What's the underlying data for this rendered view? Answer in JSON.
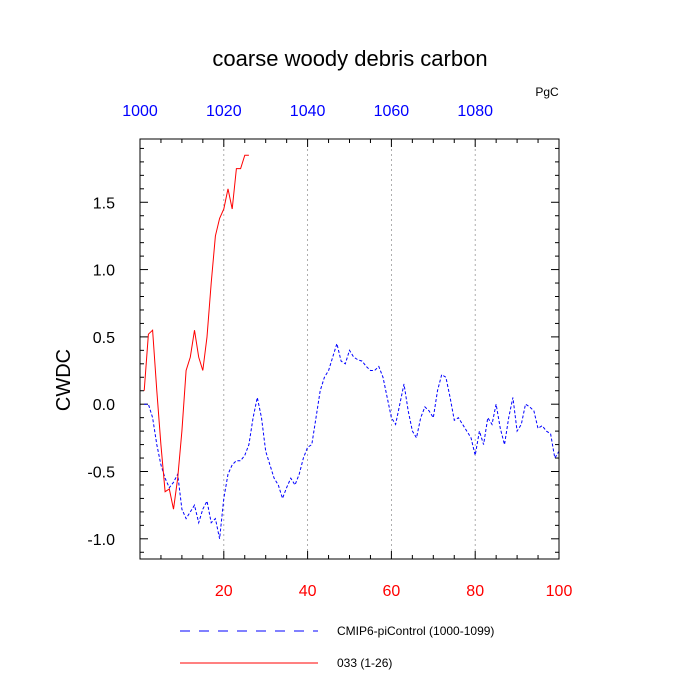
{
  "chart_data": {
    "type": "line",
    "title": "coarse woody debris carbon",
    "units": "PgC",
    "ylabel": "CWDC",
    "xlabel": "",
    "xlim": [
      0,
      100
    ],
    "ylim": [
      -1.15,
      1.97
    ],
    "grid_x": [
      20,
      40,
      60,
      80
    ],
    "bottom_ticks": {
      "values": [
        20,
        40,
        60,
        80,
        100
      ],
      "labels": [
        "20",
        "40",
        "60",
        "80",
        "100"
      ],
      "color": "#ff0000"
    },
    "top_ticks": {
      "values": [
        0,
        20,
        40,
        60,
        80
      ],
      "labels": [
        "1000",
        "1020",
        "1040",
        "1060",
        "1080"
      ],
      "color": "#0000ff"
    },
    "left_ticks": {
      "values": [
        -1.0,
        -0.5,
        0.0,
        0.5,
        1.0,
        1.5
      ],
      "labels": [
        "-1.0",
        "-0.5",
        "0.0",
        "0.5",
        "1.0",
        "1.5"
      ]
    },
    "legend_position": "bottom",
    "series": [
      {
        "name": "CMIP6-piControl (1000-1099)",
        "color": "#0000ff",
        "style": "dashed",
        "x": [
          1,
          2,
          3,
          4,
          5,
          6,
          7,
          8,
          9,
          10,
          11,
          12,
          13,
          14,
          15,
          16,
          17,
          18,
          19,
          20,
          21,
          22,
          23,
          24,
          25,
          26,
          27,
          28,
          29,
          30,
          31,
          32,
          33,
          34,
          35,
          36,
          37,
          38,
          39,
          40,
          41,
          42,
          43,
          44,
          45,
          46,
          47,
          48,
          49,
          50,
          51,
          52,
          53,
          54,
          55,
          56,
          57,
          58,
          59,
          60,
          61,
          62,
          63,
          64,
          65,
          66,
          67,
          68,
          69,
          70,
          71,
          72,
          73,
          74,
          75,
          76,
          77,
          78,
          79,
          80,
          81,
          82,
          83,
          84,
          85,
          86,
          87,
          88,
          89,
          90,
          91,
          92,
          93,
          94,
          95,
          96,
          97,
          98,
          99,
          100
        ],
        "values": [
          0.0,
          0.0,
          -0.1,
          -0.3,
          -0.45,
          -0.55,
          -0.62,
          -0.58,
          -0.52,
          -0.78,
          -0.85,
          -0.8,
          -0.75,
          -0.88,
          -0.78,
          -0.72,
          -0.88,
          -0.85,
          -1.0,
          -0.7,
          -0.52,
          -0.45,
          -0.42,
          -0.42,
          -0.38,
          -0.3,
          -0.1,
          0.05,
          -0.1,
          -0.35,
          -0.45,
          -0.55,
          -0.6,
          -0.7,
          -0.62,
          -0.55,
          -0.6,
          -0.52,
          -0.4,
          -0.32,
          -0.3,
          -0.1,
          0.1,
          0.2,
          0.25,
          0.35,
          0.45,
          0.32,
          0.3,
          0.4,
          0.35,
          0.33,
          0.32,
          0.28,
          0.25,
          0.25,
          0.28,
          0.2,
          0.05,
          -0.1,
          -0.15,
          0.0,
          0.15,
          -0.05,
          -0.2,
          -0.25,
          -0.1,
          -0.02,
          -0.05,
          -0.1,
          0.1,
          0.22,
          0.2,
          0.05,
          -0.12,
          -0.1,
          -0.15,
          -0.2,
          -0.25,
          -0.38,
          -0.2,
          -0.3,
          -0.1,
          -0.15,
          0.0,
          -0.18,
          -0.3,
          -0.1,
          0.05,
          -0.2,
          -0.15,
          0.0,
          -0.02,
          -0.05,
          -0.18,
          -0.16,
          -0.2,
          -0.22,
          -0.4,
          -0.35
        ]
      },
      {
        "name": "033 (1-26)",
        "color": "#ff0000",
        "style": "solid",
        "x": [
          1,
          2,
          3,
          4,
          5,
          6,
          7,
          8,
          9,
          10,
          11,
          12,
          13,
          14,
          15,
          16,
          17,
          18,
          19,
          20,
          21,
          22,
          23,
          24,
          25,
          26
        ],
        "values": [
          0.1,
          0.52,
          0.55,
          0.1,
          -0.3,
          -0.65,
          -0.63,
          -0.78,
          -0.55,
          -0.2,
          0.25,
          0.35,
          0.55,
          0.35,
          0.25,
          0.5,
          0.9,
          1.25,
          1.38,
          1.45,
          1.6,
          1.45,
          1.75,
          1.75,
          1.85,
          1.85
        ]
      }
    ]
  }
}
